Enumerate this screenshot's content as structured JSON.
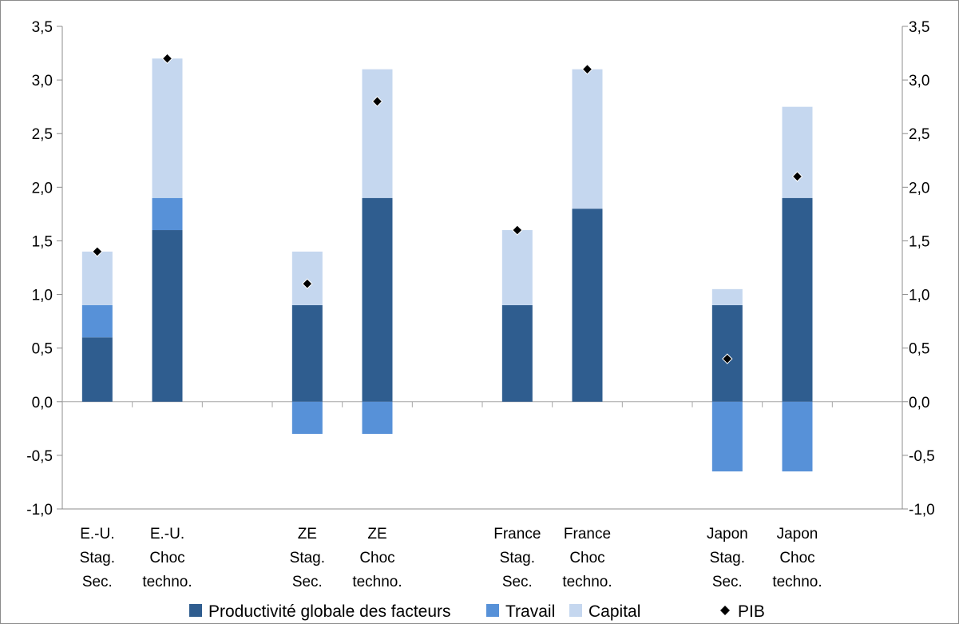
{
  "chart_data": {
    "type": "bar",
    "stacked": true,
    "title": "",
    "xlabel": "",
    "ylabel": "",
    "ylim": [
      -1.0,
      3.5
    ],
    "ytick_step": 0.5,
    "yticks": [
      "-1,0",
      "-0,5",
      "0,0",
      "0,5",
      "1,0",
      "1,5",
      "2,0",
      "2,5",
      "3,0",
      "3,5"
    ],
    "secondary_axis": true,
    "grid": false,
    "legend_position": "bottom",
    "slots": 12,
    "categories": [
      {
        "lines": [
          "E.-U.",
          "Stag.",
          "Sec."
        ],
        "slot": 0
      },
      {
        "lines": [
          "E.-U.",
          "Choc",
          "techno."
        ],
        "slot": 1
      },
      {
        "lines": [
          "ZE",
          "Stag.",
          "Sec."
        ],
        "slot": 3
      },
      {
        "lines": [
          "ZE",
          "Choc",
          "techno."
        ],
        "slot": 4
      },
      {
        "lines": [
          "France",
          "Stag.",
          "Sec."
        ],
        "slot": 6
      },
      {
        "lines": [
          "France",
          "Choc",
          "techno."
        ],
        "slot": 7
      },
      {
        "lines": [
          "Japon",
          "Stag.",
          "Sec."
        ],
        "slot": 9
      },
      {
        "lines": [
          "Japon",
          "Choc",
          "techno."
        ],
        "slot": 10
      }
    ],
    "series": [
      {
        "name": "Productivité globale des facteurs",
        "kind": "bar",
        "color": "#2f5d8f",
        "values": [
          0.6,
          1.6,
          0.9,
          1.9,
          0.9,
          1.8,
          0.9,
          1.9
        ]
      },
      {
        "name": "Travail",
        "kind": "bar",
        "color": "#5791d8",
        "values": [
          0.3,
          0.3,
          -0.3,
          -0.3,
          0.0,
          0.0,
          -0.65,
          -0.65
        ]
      },
      {
        "name": "Capital",
        "kind": "bar",
        "color": "#c5d7ef",
        "values": [
          0.5,
          1.3,
          0.5,
          1.2,
          0.7,
          1.3,
          0.15,
          0.85
        ]
      },
      {
        "name": "PIB",
        "kind": "marker",
        "color": "#000000",
        "values": [
          1.4,
          3.2,
          1.1,
          2.8,
          1.6,
          3.1,
          0.4,
          2.1
        ]
      }
    ]
  }
}
